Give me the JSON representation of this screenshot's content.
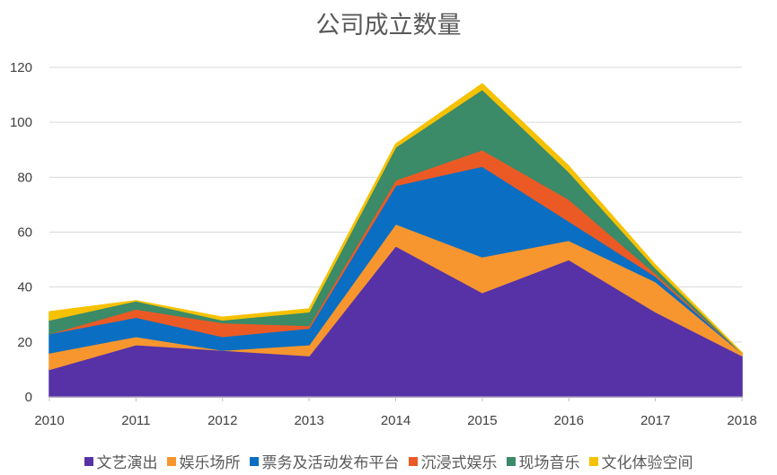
{
  "chart_data": {
    "type": "area",
    "stacked": true,
    "title": "公司成立数量",
    "xlabel": "",
    "ylabel": "",
    "x": [
      "2010",
      "2011",
      "2012",
      "2013",
      "2014",
      "2015",
      "2016",
      "2017",
      "2018"
    ],
    "ylim": [
      0,
      120
    ],
    "yticks": [
      "0",
      "20",
      "40",
      "60",
      "80",
      "100",
      "120"
    ],
    "grid": true,
    "legend_position": "bottom",
    "series": [
      {
        "name": "文艺演出",
        "color": "#5632A6",
        "values": [
          10,
          19,
          17,
          15,
          55,
          38,
          50,
          31,
          15
        ]
      },
      {
        "name": "娱乐场所",
        "color": "#F7962F",
        "values": [
          6,
          3,
          0,
          4,
          8,
          13,
          7,
          11,
          1
        ]
      },
      {
        "name": "票务及活动发布平台",
        "color": "#0A6FC2",
        "values": [
          7,
          7,
          5,
          6,
          14,
          33,
          7,
          2,
          0
        ]
      },
      {
        "name": "沉浸式娱乐",
        "color": "#EB5A25",
        "values": [
          0,
          3,
          5,
          1,
          2,
          6,
          8,
          1,
          0
        ]
      },
      {
        "name": "现场音乐",
        "color": "#3B8A68",
        "values": [
          5,
          3,
          1,
          5,
          12,
          22,
          10,
          2,
          0
        ]
      },
      {
        "name": "文化体验空间",
        "color": "#F6C100",
        "values": [
          3,
          0,
          1,
          1,
          1,
          2,
          2,
          1,
          0
        ]
      }
    ]
  }
}
